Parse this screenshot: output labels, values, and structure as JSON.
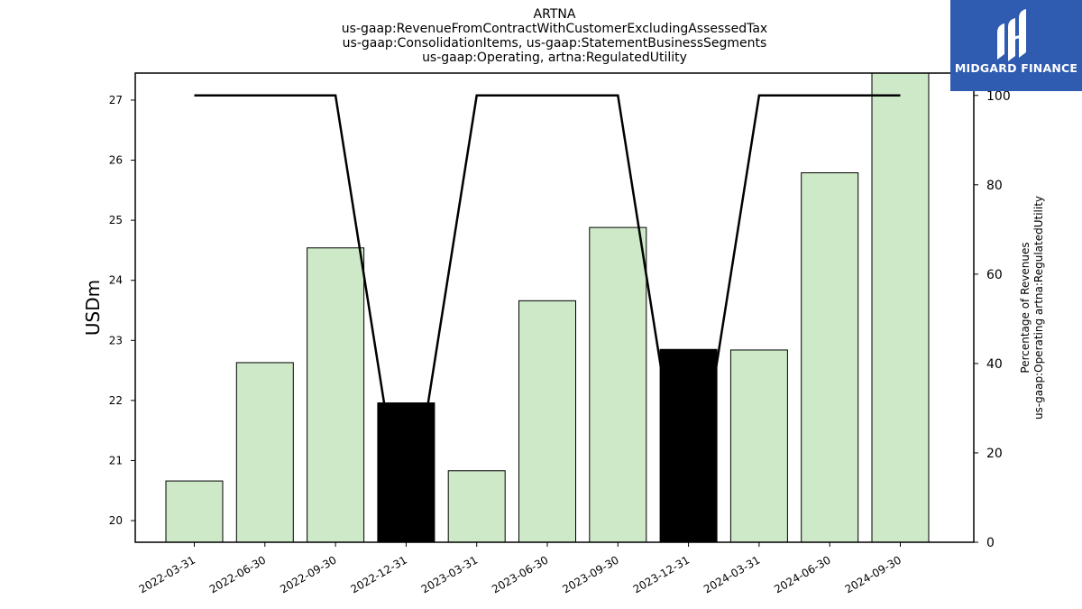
{
  "logo": {
    "text": "MIDGARD FINANCE",
    "icon": "midgard-logo-icon",
    "color": "#2f5bb0"
  },
  "chart_data": {
    "type": "bar",
    "title_lines": [
      "ARTNA",
      "us-gaap:RevenueFromContractWithCustomerExcludingAssessedTax",
      "us-gaap:ConsolidationItems, us-gaap:StatementBusinessSegments",
      "us-gaap:Operating, artna:RegulatedUtility"
    ],
    "categories": [
      "2022-03-31",
      "2022-06-30",
      "2022-09-30",
      "2022-12-31",
      "2023-03-31",
      "2023-06-30",
      "2023-09-30",
      "2023-12-31",
      "2024-03-31",
      "2024-06-30",
      "2024-09-30"
    ],
    "values": [
      20.66,
      22.63,
      24.54,
      21.96,
      20.83,
      23.66,
      24.88,
      22.85,
      22.84,
      25.79,
      27.45
    ],
    "bar_highlight": [
      false,
      false,
      false,
      true,
      false,
      false,
      false,
      true,
      false,
      false,
      false
    ],
    "bar_color": "#cde9c7",
    "highlight_color": "#000000",
    "line_series": {
      "values": [
        100,
        100,
        100,
        0,
        100,
        100,
        100,
        0,
        100,
        100,
        100
      ],
      "color": "#000000"
    },
    "ylabel": "USDm",
    "ylabel_right_lines": [
      "Percentage of Revenues",
      "us-gaap:Operating artna:RegulatedUtility"
    ],
    "ylim": [
      19.64,
      27.45
    ],
    "yticks": [
      20,
      21,
      22,
      23,
      24,
      25,
      26,
      27
    ],
    "ylim_right": [
      0,
      105
    ],
    "yticks_right": [
      0,
      20,
      40,
      60,
      80,
      100
    ],
    "grid": false
  }
}
